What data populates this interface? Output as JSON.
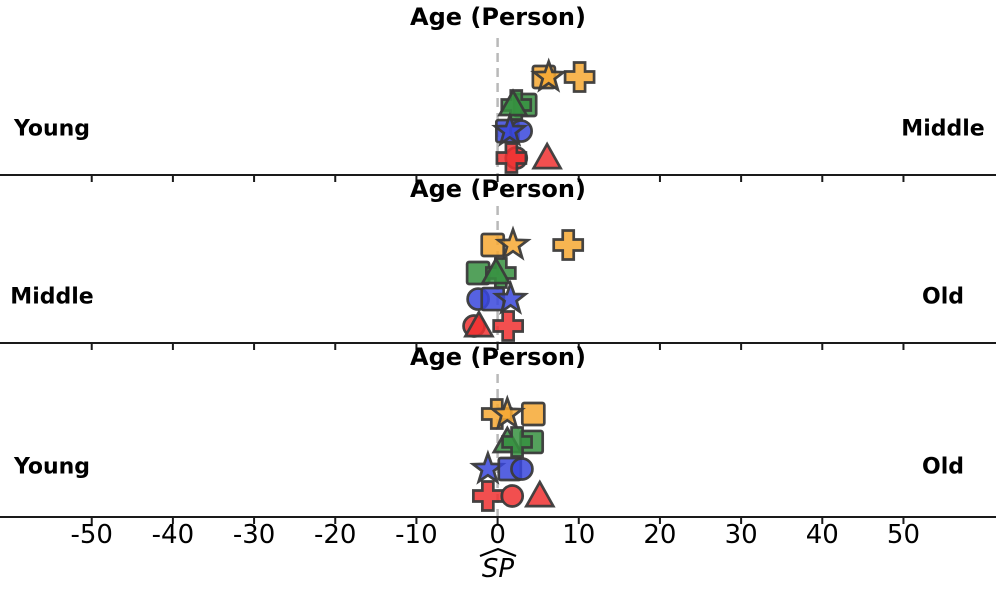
{
  "chart_data": {
    "type": "scatter",
    "x_axis": {
      "label": "SP",
      "label_accent": "widehat",
      "ticks": [
        -50,
        -40,
        -30,
        -20,
        -10,
        0,
        10,
        20,
        30,
        40,
        50
      ],
      "lim": [
        -61.3,
        61.4
      ],
      "grid": false
    },
    "zero_line": {
      "x": 0,
      "style": "dashed",
      "color": "#b9b9b9"
    },
    "marker_edge_color": "#3b3b3b",
    "colors": {
      "orange": "#F6A832",
      "green": "#36913F",
      "blue": "#3847DC",
      "red": "#F03030"
    },
    "legend": "none",
    "panels": [
      {
        "title": "Age (Person)",
        "left_label": "Young",
        "right_label": "Middle",
        "rows": [
          {
            "color": "orange",
            "y_frac": 0.324,
            "markers": [
              {
                "shape": "square",
                "x": 5.7
              },
              {
                "shape": "star",
                "x": 6.3
              },
              {
                "shape": "plus",
                "x": 10.1
              }
            ]
          },
          {
            "color": "green",
            "y_frac": 0.517,
            "markers": [
              {
                "shape": "square",
                "x": 3.4
              },
              {
                "shape": "plus",
                "x": 2.3
              },
              {
                "shape": "triangle",
                "x": 1.9
              }
            ]
          },
          {
            "color": "blue",
            "y_frac": 0.697,
            "markers": [
              {
                "shape": "square",
                "x": 1.2
              },
              {
                "shape": "circle",
                "x": 2.9
              },
              {
                "shape": "star",
                "x": 1.5
              }
            ]
          },
          {
            "color": "red",
            "y_frac": 0.883,
            "markers": [
              {
                "shape": "circle",
                "x": 2.3
              },
              {
                "shape": "plus",
                "x": 1.7
              },
              {
                "shape": "triangle",
                "x": 6.1
              }
            ]
          }
        ]
      },
      {
        "title": "Age (Person)",
        "left_label": "Middle",
        "right_label": "Old",
        "rows": [
          {
            "color": "orange",
            "y_frac": 0.324,
            "markers": [
              {
                "shape": "square",
                "x": -0.6
              },
              {
                "shape": "star",
                "x": 1.9
              },
              {
                "shape": "plus",
                "x": 8.7
              }
            ]
          },
          {
            "color": "green",
            "y_frac": 0.517,
            "markers": [
              {
                "shape": "square",
                "x": -2.4
              },
              {
                "shape": "plus",
                "x": 0.4
              },
              {
                "shape": "triangle",
                "x": -0.2
              }
            ]
          },
          {
            "color": "blue",
            "y_frac": 0.697,
            "markers": [
              {
                "shape": "circle",
                "x": -2.4
              },
              {
                "shape": "square",
                "x": -0.6
              },
              {
                "shape": "star",
                "x": 1.6
              }
            ]
          },
          {
            "color": "red",
            "y_frac": 0.883,
            "markers": [
              {
                "shape": "circle",
                "x": -2.9
              },
              {
                "shape": "triangle",
                "x": -2.3
              },
              {
                "shape": "plus",
                "x": 1.3
              }
            ]
          }
        ]
      },
      {
        "title": "Age (Person)",
        "left_label": "Young",
        "right_label": "Old",
        "rows": [
          {
            "color": "orange",
            "y_frac": 0.318,
            "markers": [
              {
                "shape": "plus",
                "x": -0.1
              },
              {
                "shape": "square",
                "x": 4.4
              },
              {
                "shape": "star",
                "x": 1.2
              }
            ]
          },
          {
            "color": "green",
            "y_frac": 0.503,
            "markers": [
              {
                "shape": "triangle",
                "x": 1.2
              },
              {
                "shape": "square",
                "x": 4.2
              },
              {
                "shape": "plus",
                "x": 2.4
              }
            ]
          },
          {
            "color": "blue",
            "y_frac": 0.682,
            "markers": [
              {
                "shape": "star",
                "x": -1.2
              },
              {
                "shape": "square",
                "x": 1.5
              },
              {
                "shape": "circle",
                "x": 3.0
              }
            ]
          },
          {
            "color": "red",
            "y_frac": 0.861,
            "markers": [
              {
                "shape": "plus",
                "x": -1.2
              },
              {
                "shape": "circle",
                "x": 1.8
              },
              {
                "shape": "triangle",
                "x": 5.2
              }
            ]
          }
        ]
      }
    ]
  }
}
